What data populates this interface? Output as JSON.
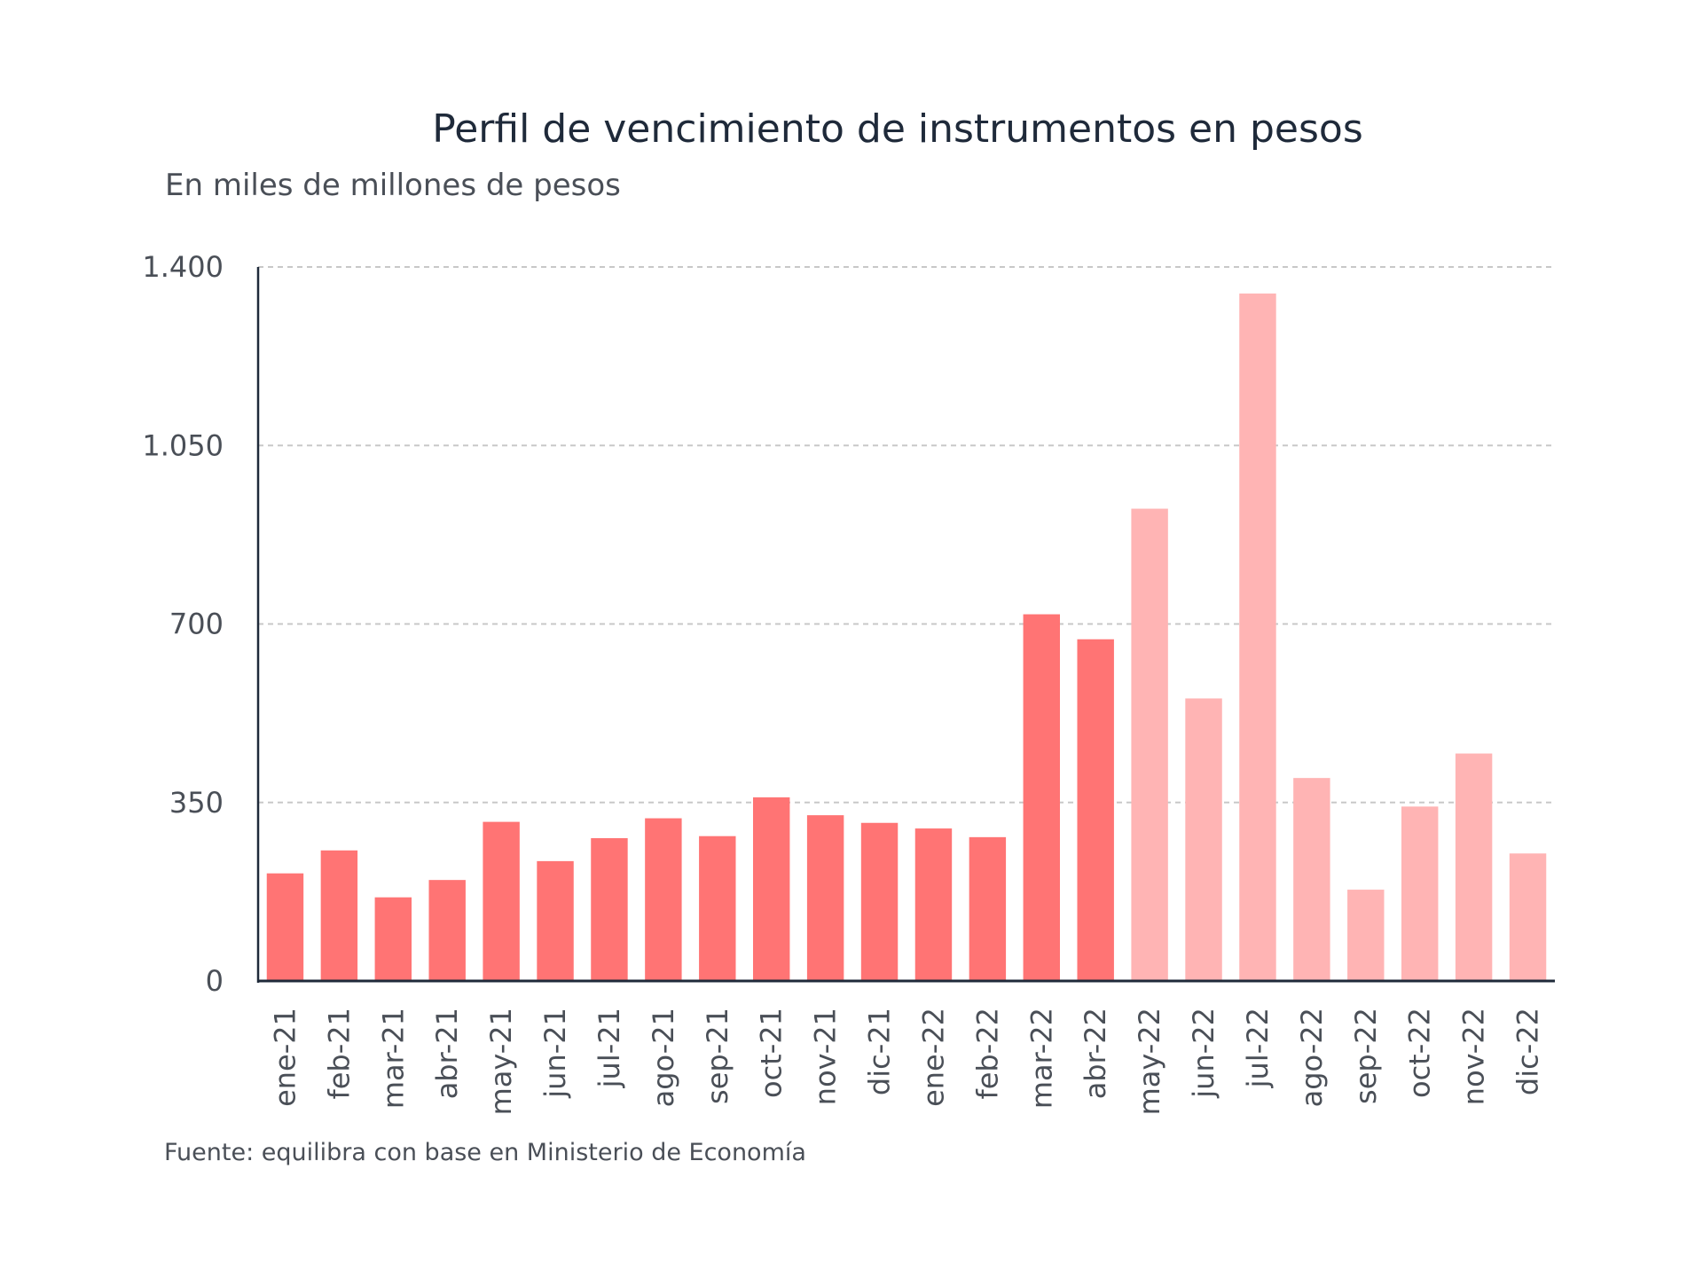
{
  "chart_data": {
    "type": "bar",
    "title": "Perfil de vencimiento de instrumentos en pesos",
    "subtitle": "En miles de millones de pesos",
    "source": "Fuente: equilibra con base en Ministerio de Economía",
    "xlabel": "",
    "ylabel": "",
    "ylim": [
      0,
      1400
    ],
    "yticks": [
      0,
      350,
      700,
      1050,
      1400
    ],
    "ytick_labels": [
      "0",
      "350",
      "700",
      "1.050",
      "1.400"
    ],
    "grid": true,
    "categories": [
      "ene-21",
      "feb-21",
      "mar-21",
      "abr-21",
      "may-21",
      "jun-21",
      "jul-21",
      "ago-21",
      "sep-21",
      "oct-21",
      "nov-21",
      "dic-21",
      "ene-22",
      "feb-22",
      "mar-22",
      "abr-22",
      "may-22",
      "jun-22",
      "jul-22",
      "ago-22",
      "sep-22",
      "oct-22",
      "nov-22",
      "dic-22"
    ],
    "values": [
      211,
      256,
      164,
      198,
      312,
      235,
      280,
      319,
      284,
      360,
      325,
      310,
      299,
      282,
      719,
      670,
      926,
      554,
      1348,
      398,
      179,
      342,
      446,
      250
    ],
    "bar_colors": [
      "#ff7474",
      "#ff7474",
      "#ff7474",
      "#ff7474",
      "#ff7474",
      "#ff7474",
      "#ff7474",
      "#ff7474",
      "#ff7474",
      "#ff7474",
      "#ff7474",
      "#ff7474",
      "#ff7474",
      "#ff7474",
      "#ff7474",
      "#ff7474",
      "#ffb4b4",
      "#ffb4b4",
      "#ffb4b4",
      "#ffb4b4",
      "#ffb4b4",
      "#ffb4b4",
      "#ffb4b4",
      "#ffb4b4"
    ],
    "axis_color": "#1f2a3a",
    "grid_color": "#c8c8c8"
  }
}
